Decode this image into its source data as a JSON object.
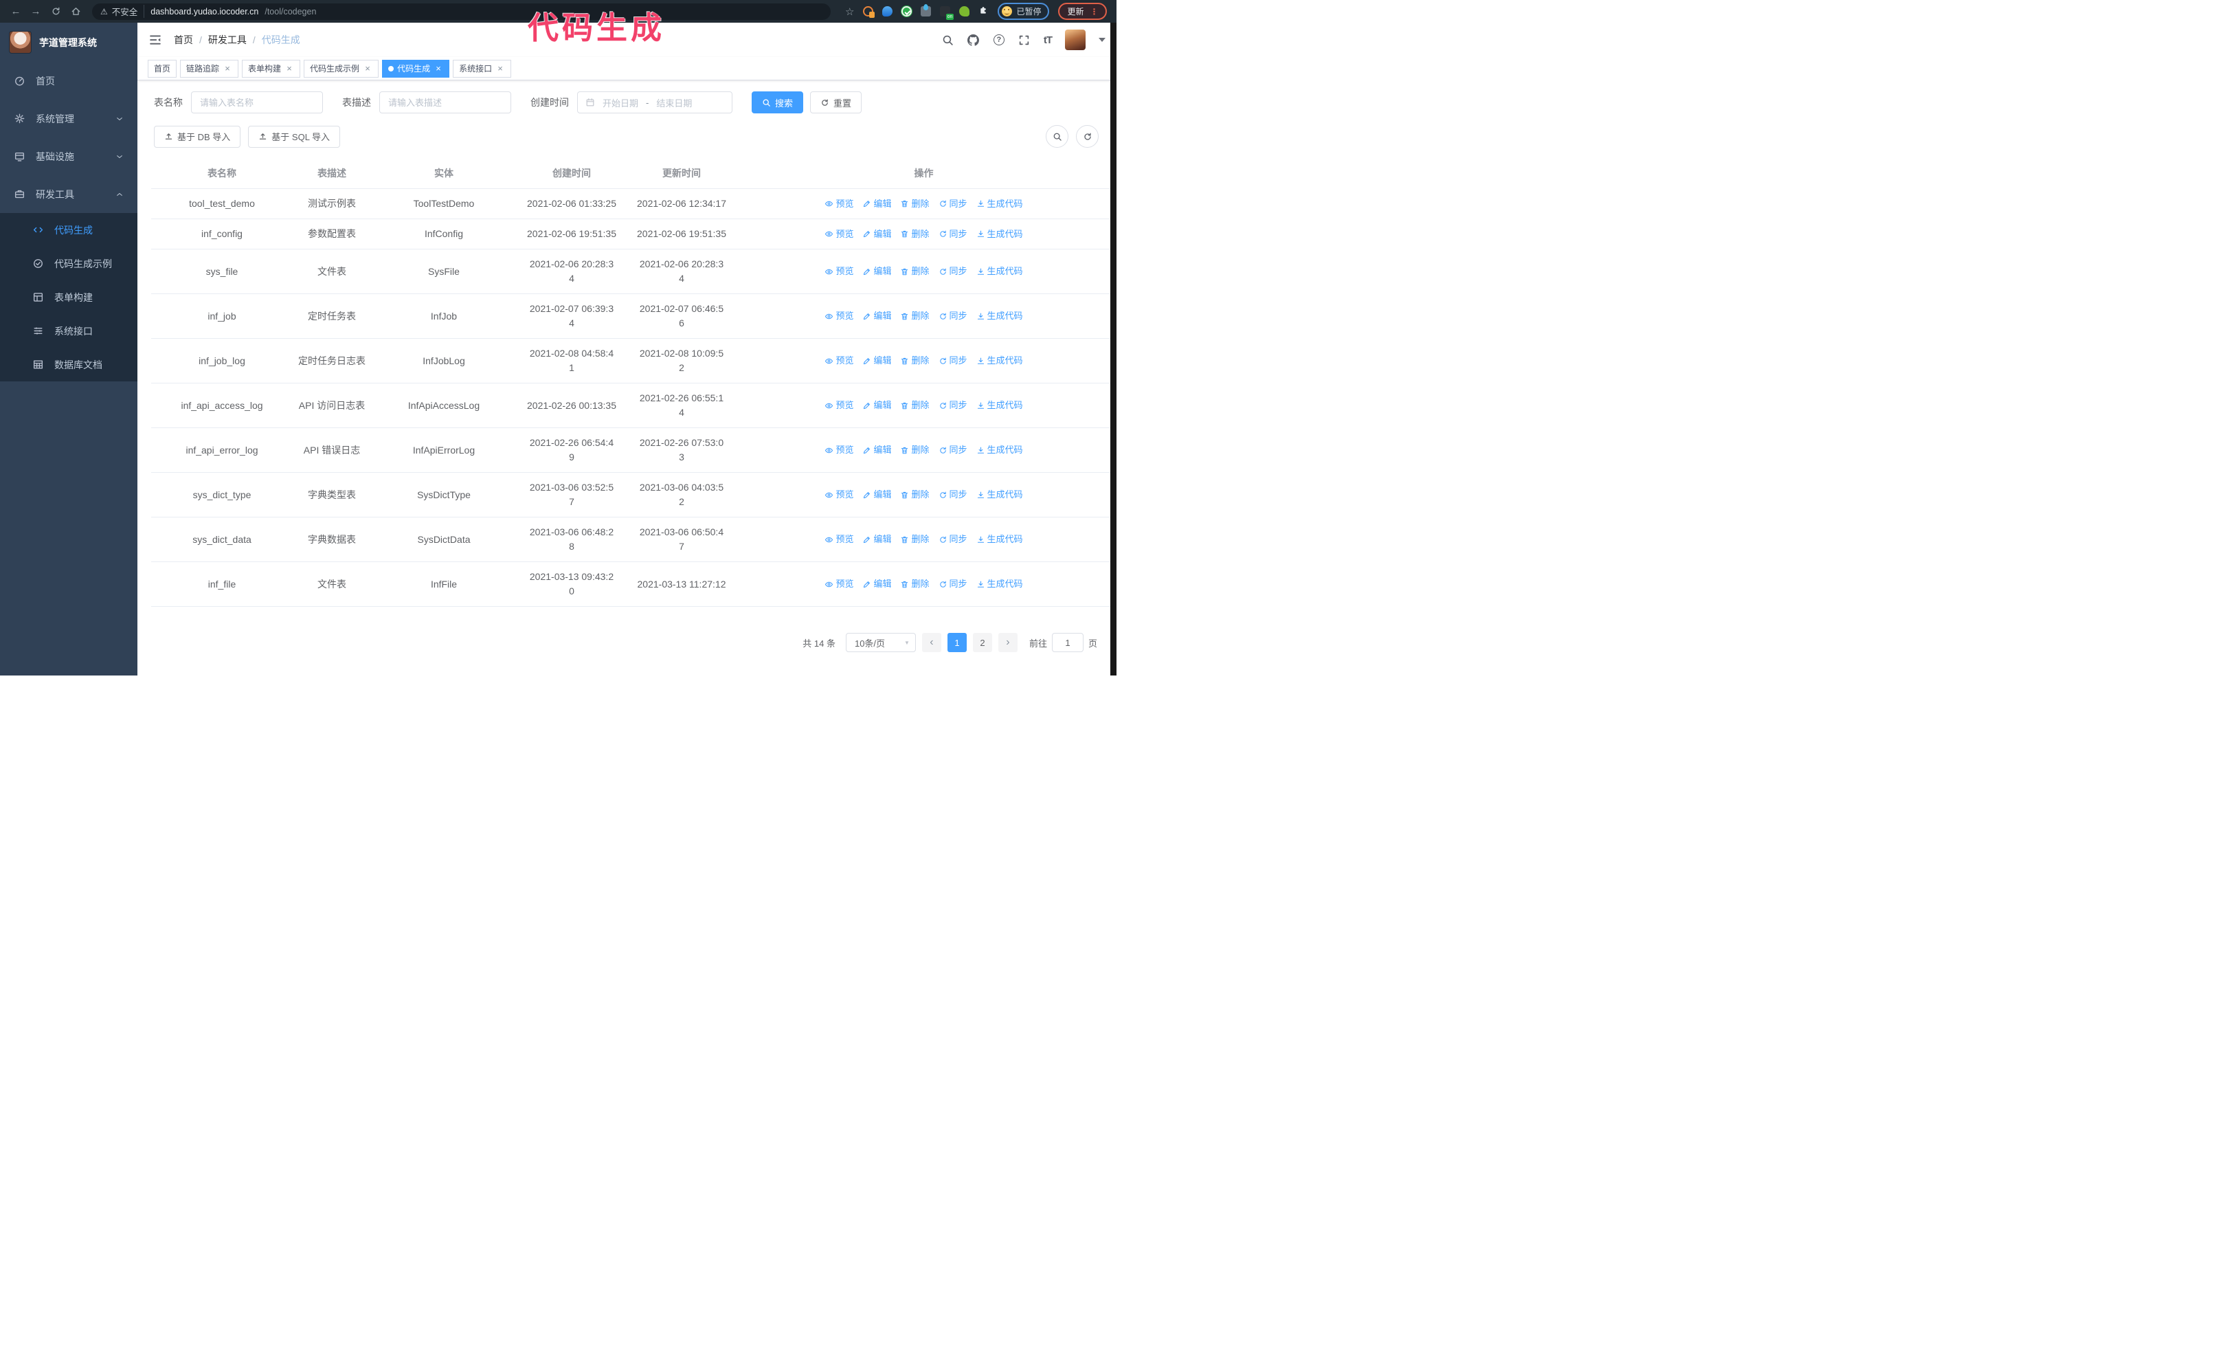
{
  "browser": {
    "security_warning": "不安全",
    "url_host": "dashboard.yudao.iocoder.cn",
    "url_path": "/tool/codegen",
    "paused_badge": "已暂停",
    "update_button": "更新"
  },
  "annotation": {
    "text": "代码生成",
    "color": "#f2416a"
  },
  "sidebar": {
    "logo_title": "芋道管理系统",
    "items": [
      {
        "key": "home",
        "label": "首页",
        "icon": "dashboard-icon",
        "chevron": "none"
      },
      {
        "key": "system",
        "label": "系统管理",
        "icon": "gear-icon",
        "chevron": "down"
      },
      {
        "key": "infra",
        "label": "基础设施",
        "icon": "infrastructure-icon",
        "chevron": "down"
      },
      {
        "key": "devtools",
        "label": "研发工具",
        "icon": "toolbox-icon",
        "chevron": "up"
      }
    ],
    "submenu": [
      {
        "key": "codegen",
        "label": "代码生成",
        "icon": "code-icon",
        "active": true
      },
      {
        "key": "codegen-example",
        "label": "代码生成示例",
        "icon": "badge-check-icon",
        "active": false
      },
      {
        "key": "form-builder",
        "label": "表单构建",
        "icon": "form-grid-icon",
        "active": false
      },
      {
        "key": "system-api",
        "label": "系统接口",
        "icon": "api-list-icon",
        "active": false
      },
      {
        "key": "db-doc",
        "label": "数据库文档",
        "icon": "database-table-icon",
        "active": false
      }
    ]
  },
  "header": {
    "breadcrumb": [
      "首页",
      "研发工具",
      "代码生成"
    ],
    "separator": "/"
  },
  "tabs": [
    {
      "label": "首页",
      "closable": false,
      "active": false
    },
    {
      "label": "链路追踪",
      "closable": true,
      "active": false
    },
    {
      "label": "表单构建",
      "closable": true,
      "active": false
    },
    {
      "label": "代码生成示例",
      "closable": true,
      "active": false
    },
    {
      "label": "代码生成",
      "closable": true,
      "active": true
    },
    {
      "label": "系统接口",
      "closable": true,
      "active": false
    }
  ],
  "filters": {
    "table_name_label": "表名称",
    "table_name_placeholder": "请输入表名称",
    "table_desc_label": "表描述",
    "table_desc_placeholder": "请输入表描述",
    "create_time_label": "创建时间",
    "date_start_placeholder": "开始日期",
    "date_separator": "-",
    "date_end_placeholder": "结束日期",
    "search_label": "搜索",
    "reset_label": "重置"
  },
  "toolbar": {
    "import_db_label": "基于 DB 导入",
    "import_sql_label": "基于 SQL 导入"
  },
  "table": {
    "columns": [
      "表名称",
      "表描述",
      "实体",
      "创建时间",
      "更新时间",
      "操作"
    ],
    "actions": [
      "预览",
      "编辑",
      "删除",
      "同步",
      "生成代码"
    ],
    "action_icons": [
      "eye-icon",
      "edit-icon",
      "delete-icon",
      "sync-icon",
      "download-icon"
    ],
    "rows": [
      {
        "name": "tool_test_demo",
        "desc": "测试示例表",
        "entity": "ToolTestDemo",
        "created": "2021-02-06 01:33:25",
        "updated": "2021-02-06 12:34:17"
      },
      {
        "name": "inf_config",
        "desc": "参数配置表",
        "entity": "InfConfig",
        "created": "2021-02-06 19:51:35",
        "updated": "2021-02-06 19:51:35"
      },
      {
        "name": "sys_file",
        "desc": "文件表",
        "entity": "SysFile",
        "created": "2021-02-06 20:28:3\n4",
        "updated": "2021-02-06 20:28:3\n4"
      },
      {
        "name": "inf_job",
        "desc": "定时任务表",
        "entity": "InfJob",
        "created": "2021-02-07 06:39:3\n4",
        "updated": "2021-02-07 06:46:5\n6"
      },
      {
        "name": "inf_job_log",
        "desc": "定时任务日志表",
        "entity": "InfJobLog",
        "created": "2021-02-08 04:58:4\n1",
        "updated": "2021-02-08 10:09:5\n2"
      },
      {
        "name": "inf_api_access_log",
        "desc": "API 访问日志表",
        "entity": "InfApiAccessLog",
        "created": "2021-02-26 00:13:35",
        "updated": "2021-02-26 06:55:1\n4"
      },
      {
        "name": "inf_api_error_log",
        "desc": "API 错误日志",
        "entity": "InfApiErrorLog",
        "created": "2021-02-26 06:54:4\n9",
        "updated": "2021-02-26 07:53:0\n3"
      },
      {
        "name": "sys_dict_type",
        "desc": "字典类型表",
        "entity": "SysDictType",
        "created": "2021-03-06 03:52:5\n7",
        "updated": "2021-03-06 04:03:5\n2"
      },
      {
        "name": "sys_dict_data",
        "desc": "字典数据表",
        "entity": "SysDictData",
        "created": "2021-03-06 06:48:2\n8",
        "updated": "2021-03-06 06:50:4\n7"
      },
      {
        "name": "inf_file",
        "desc": "文件表",
        "entity": "InfFile",
        "created": "2021-03-13 09:43:2\n0",
        "updated": "2021-03-13 11:27:12"
      }
    ]
  },
  "pagination": {
    "total": "共 14 条",
    "page_size": "10条/页",
    "pages": [
      "1",
      "2"
    ],
    "active_page": "1",
    "goto_label": "前往",
    "goto_value": "1",
    "goto_suffix": "页"
  },
  "colors": {
    "accent": "#409eff",
    "sidebar_bg": "#304156",
    "submenu_bg": "#1f2d3d",
    "annotation": "#f2416a"
  }
}
